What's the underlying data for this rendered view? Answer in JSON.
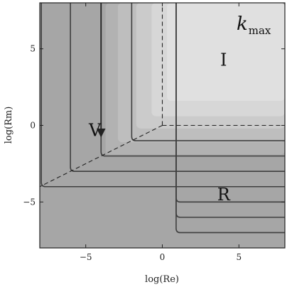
{
  "chart_data": {
    "type": "heatmap",
    "title": "",
    "xlabel": "log(Re)",
    "ylabel": "log(Rm)",
    "xlim": [
      -8,
      8
    ],
    "ylim": [
      -8,
      8
    ],
    "xticks": [
      -5,
      0,
      5
    ],
    "yticks": [
      -5,
      0,
      5
    ],
    "xtick_labels": [
      "−5",
      "0",
      "5"
    ],
    "ytick_labels": [
      "−5",
      "0",
      "5"
    ],
    "colorbar_title": "k",
    "colorbar_title_subscript": "max",
    "colors": {
      "base": "#a6a6a6",
      "band1": "#b2b2b2",
      "band2": "#bebebe",
      "band3": "#cbcbcb",
      "band4": "#d7d7d7",
      "band5": "#e0e0e0",
      "contour": "#3f3f3f",
      "dashed": "#222222"
    },
    "shading_bands": [
      {
        "x0": -3.7,
        "y0": -1.9,
        "color": "band1"
      },
      {
        "x0": -2.9,
        "y0": -1.1,
        "color": "band2"
      },
      {
        "x0": -1.7,
        "y0": -0.2,
        "color": "band3"
      },
      {
        "x0": -0.7,
        "y0": 0.6,
        "color": "band4"
      },
      {
        "x0": 0.3,
        "y0": 1.6,
        "color": "band5"
      }
    ],
    "regions": [
      {
        "label": "I",
        "x": 4.0,
        "y": 4.2
      },
      {
        "label": "V",
        "x": -4.4,
        "y": -0.4
      },
      {
        "label": "R",
        "x": 4.0,
        "y": -4.6
      }
    ],
    "boundaries": [
      {
        "name": "I-R",
        "style": "dashed",
        "points": [
          [
            0,
            0
          ],
          [
            8,
            0
          ]
        ]
      },
      {
        "name": "I-V",
        "style": "dashed",
        "points": [
          [
            0,
            0
          ],
          [
            0,
            8
          ]
        ]
      },
      {
        "name": "V-R",
        "style": "dashed",
        "points": [
          [
            0,
            0
          ],
          [
            -8,
            -4
          ]
        ]
      }
    ],
    "contours": [
      {
        "vx": 0.9,
        "hy": -7.0
      },
      {
        "vx": 0.9,
        "hy": -6.0
      },
      {
        "vx": 0.9,
        "hy": -5.0
      },
      {
        "vx": -7.9,
        "hy": -4.0
      },
      {
        "vx": -6.0,
        "hy": -3.0
      },
      {
        "vx": -4.0,
        "hy": -2.0
      },
      {
        "vx": -2.0,
        "hy": -1.0
      }
    ],
    "arrow": {
      "from": [
        -4.0,
        8.0
      ],
      "to": [
        -4.0,
        -0.5
      ]
    }
  }
}
